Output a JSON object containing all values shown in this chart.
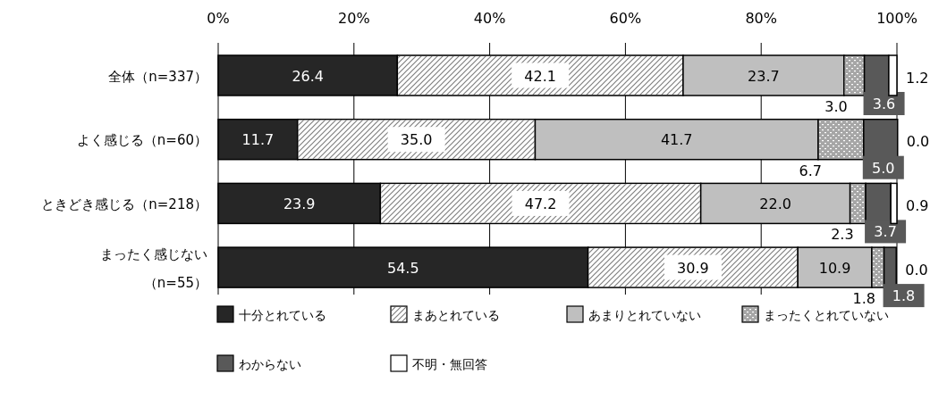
{
  "chart_data": {
    "type": "bar",
    "orientation": "horizontal",
    "stacked": true,
    "data_labels": true,
    "grid": "x",
    "legend": "bottom",
    "categories": [
      "全体（n=337）",
      "よく感じる（n=60）",
      "ときどき感じる（n=218）",
      "まったく感じない（n=55）"
    ],
    "xlim": [
      0,
      100
    ],
    "xticks": [
      {
        "value": 0,
        "label": "0%"
      },
      {
        "value": 20,
        "label": "20%"
      },
      {
        "value": 40,
        "label": "40%"
      },
      {
        "value": 60,
        "label": "60%"
      },
      {
        "value": 80,
        "label": "80%"
      },
      {
        "value": 100,
        "label": "100%"
      }
    ],
    "series": [
      {
        "name": "十分とれている",
        "color": "#262626",
        "values": [
          26.4,
          11.7,
          23.9,
          54.5
        ],
        "value_labels": [
          "26.4",
          "11.7",
          "23.9",
          "54.5"
        ]
      },
      {
        "name": "まあとれている",
        "color": "#d9d9d9",
        "values": [
          42.1,
          35.0,
          47.2,
          30.9
        ],
        "value_labels": [
          "42.1",
          "35.0",
          "47.2",
          "30.9"
        ]
      },
      {
        "name": "あまりとれていない",
        "color": "#bfbfbf",
        "values": [
          23.7,
          41.7,
          22.0,
          10.9
        ],
        "value_labels": [
          "23.7",
          "41.7",
          "22.0",
          "10.9"
        ]
      },
      {
        "name": "まったくとれていない",
        "color": "#a6a6a6",
        "values": [
          3.0,
          6.7,
          2.3,
          1.8
        ],
        "value_labels": [
          "3.0",
          "6.7",
          "2.3",
          "1.8"
        ]
      },
      {
        "name": "わからない",
        "color": "#595959",
        "values": [
          3.6,
          5.0,
          3.7,
          1.8
        ],
        "value_labels": [
          "3.6",
          "5.0",
          "3.7",
          "1.8"
        ]
      },
      {
        "name": "不明・無回答",
        "color": "#ffffff",
        "values": [
          1.2,
          0.0,
          0.9,
          0.0
        ],
        "value_labels": [
          "1.2",
          "0.0",
          "0.9",
          "0.0"
        ]
      }
    ]
  }
}
